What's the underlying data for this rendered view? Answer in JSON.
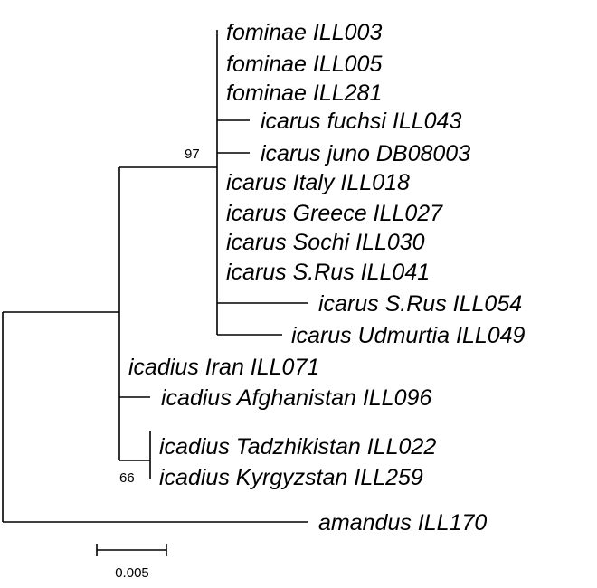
{
  "taxa": [
    "fominae ILL003",
    "fominae ILL005",
    "fominae ILL281",
    "icarus fuchsi ILL043",
    "icarus juno DB08003",
    "icarus Italy ILL018",
    "icarus Greece ILL027",
    "icarus Sochi ILL030",
    "icarus S.Rus ILL041",
    "icarus S.Rus ILL054",
    "icarus Udmurtia ILL049",
    "icadius Iran ILL071",
    "icadius Afghanistan ILL096",
    "icadius Tadzhikistan ILL022",
    "icadius Kyrgyzstan ILL259",
    "amandus ILL170"
  ],
  "support_values": {
    "icarus_clade": "97",
    "tadzhikistan_kyrgyzstan_clade": "66"
  },
  "scale_bar": {
    "label": "0.005"
  }
}
